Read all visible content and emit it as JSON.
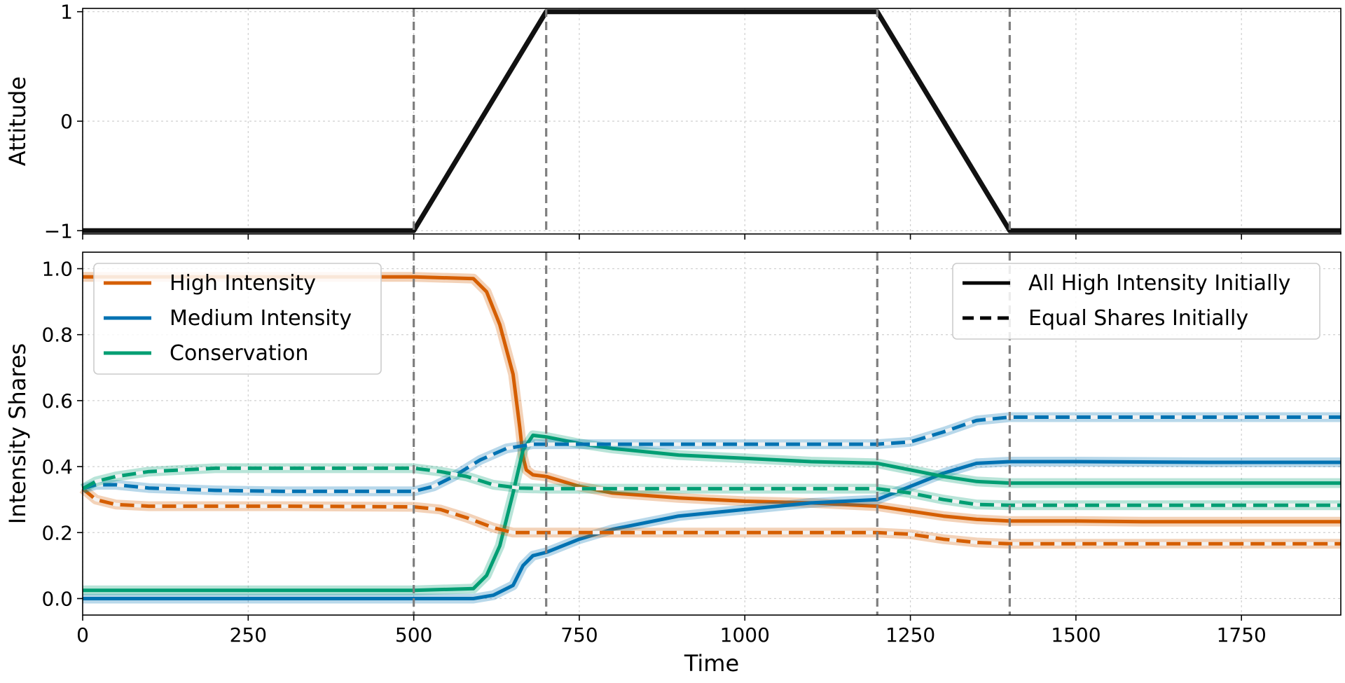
{
  "chart_data": [
    {
      "type": "line",
      "ylabel": "Attitude",
      "xlim": [
        0,
        1900
      ],
      "ylim": [
        -1.03,
        1.03
      ],
      "yticks": [
        -1,
        0,
        1
      ],
      "ytick_labels": [
        "−1",
        "0",
        "1"
      ],
      "xticks": [
        0,
        250,
        500,
        750,
        1000,
        1250,
        1500,
        1750
      ],
      "grid": true,
      "vlines": [
        500,
        700,
        1200,
        1400
      ],
      "series": [
        {
          "color": "#111111",
          "x": [
            0,
            500,
            700,
            1200,
            1400,
            1900
          ],
          "y": [
            -1,
            -1,
            1,
            1,
            -1,
            -1
          ]
        }
      ]
    },
    {
      "type": "line",
      "xlabel": "Time",
      "ylabel": "Intensity Shares",
      "xlim": [
        0,
        1900
      ],
      "ylim": [
        -0.05,
        1.05
      ],
      "yticks": [
        0.0,
        0.2,
        0.4,
        0.6,
        0.8,
        1.0
      ],
      "ytick_labels": [
        "0.0",
        "0.2",
        "0.4",
        "0.6",
        "0.8",
        "1.0"
      ],
      "xticks": [
        0,
        250,
        500,
        750,
        1000,
        1250,
        1500,
        1750
      ],
      "xtick_labels": [
        "0",
        "250",
        "500",
        "750",
        "1000",
        "1250",
        "1500",
        "1750"
      ],
      "grid": true,
      "vlines": [
        500,
        700,
        1200,
        1400
      ],
      "legend_colors": {
        "placement": "top-left",
        "items": [
          {
            "label": "High Intensity",
            "color": "#d55e00"
          },
          {
            "label": "Medium Intensity",
            "color": "#0072b2"
          },
          {
            "label": "Conservation",
            "color": "#009e73"
          }
        ]
      },
      "legend_styles": {
        "placement": "top-right",
        "items": [
          {
            "label": "All High Intensity Initially",
            "style": "solid"
          },
          {
            "label": "Equal Shares Initially",
            "style": "dashed"
          }
        ]
      },
      "series": [
        {
          "name": "High Intensity",
          "style": "solid",
          "color": "#d55e00",
          "x": [
            0,
            100,
            300,
            500,
            590,
            610,
            630,
            650,
            660,
            665,
            670,
            680,
            700,
            750,
            800,
            900,
            1000,
            1100,
            1200,
            1250,
            1300,
            1350,
            1400,
            1500,
            1600,
            1700,
            1800,
            1900
          ],
          "y": [
            0.975,
            0.975,
            0.975,
            0.975,
            0.97,
            0.93,
            0.83,
            0.68,
            0.52,
            0.43,
            0.39,
            0.375,
            0.37,
            0.34,
            0.32,
            0.305,
            0.295,
            0.29,
            0.28,
            0.265,
            0.25,
            0.24,
            0.235,
            0.235,
            0.233,
            0.233,
            0.233,
            0.233
          ]
        },
        {
          "name": "Medium Intensity",
          "style": "solid",
          "color": "#0072b2",
          "x": [
            0,
            500,
            590,
            620,
            650,
            665,
            680,
            700,
            750,
            800,
            900,
            1000,
            1100,
            1200,
            1250,
            1300,
            1350,
            1400,
            1500,
            1600,
            1700,
            1800,
            1900
          ],
          "y": [
            0.0,
            0.0,
            0.0,
            0.01,
            0.04,
            0.1,
            0.13,
            0.14,
            0.18,
            0.21,
            0.25,
            0.27,
            0.29,
            0.3,
            0.34,
            0.38,
            0.41,
            0.415,
            0.415,
            0.414,
            0.413,
            0.413,
            0.413
          ]
        },
        {
          "name": "Conservation",
          "style": "solid",
          "color": "#009e73",
          "x": [
            0,
            500,
            590,
            610,
            630,
            650,
            665,
            680,
            700,
            750,
            800,
            900,
            1000,
            1100,
            1200,
            1250,
            1300,
            1350,
            1400,
            1500,
            1600,
            1700,
            1800,
            1900
          ],
          "y": [
            0.025,
            0.025,
            0.03,
            0.07,
            0.16,
            0.32,
            0.45,
            0.495,
            0.49,
            0.47,
            0.455,
            0.435,
            0.425,
            0.415,
            0.41,
            0.39,
            0.37,
            0.355,
            0.35,
            0.35,
            0.35,
            0.35,
            0.35,
            0.35
          ]
        },
        {
          "name": "High Intensity",
          "style": "dashed",
          "color": "#d55e00",
          "x": [
            0,
            20,
            50,
            100,
            300,
            500,
            540,
            580,
            620,
            650,
            700,
            1000,
            1200,
            1250,
            1300,
            1350,
            1400,
            1500,
            1900
          ],
          "y": [
            0.333,
            0.3,
            0.285,
            0.28,
            0.28,
            0.278,
            0.27,
            0.245,
            0.215,
            0.2,
            0.2,
            0.2,
            0.2,
            0.195,
            0.18,
            0.17,
            0.166,
            0.166,
            0.166
          ]
        },
        {
          "name": "Medium Intensity",
          "style": "dashed",
          "color": "#0072b2",
          "x": [
            0,
            20,
            50,
            100,
            200,
            300,
            500,
            530,
            560,
            600,
            640,
            680,
            700,
            1000,
            1200,
            1250,
            1300,
            1350,
            1400,
            1500,
            1900
          ],
          "y": [
            0.333,
            0.345,
            0.345,
            0.335,
            0.328,
            0.325,
            0.325,
            0.34,
            0.37,
            0.42,
            0.455,
            0.468,
            0.468,
            0.468,
            0.468,
            0.475,
            0.505,
            0.54,
            0.55,
            0.55,
            0.55
          ]
        },
        {
          "name": "Conservation",
          "style": "dashed",
          "color": "#009e73",
          "x": [
            0,
            20,
            50,
            100,
            200,
            300,
            500,
            540,
            580,
            620,
            660,
            700,
            1000,
            1200,
            1250,
            1300,
            1350,
            1400,
            1500,
            1900
          ],
          "y": [
            0.333,
            0.355,
            0.37,
            0.385,
            0.395,
            0.395,
            0.395,
            0.385,
            0.37,
            0.345,
            0.335,
            0.333,
            0.333,
            0.333,
            0.32,
            0.3,
            0.285,
            0.283,
            0.283,
            0.283
          ]
        }
      ]
    }
  ]
}
